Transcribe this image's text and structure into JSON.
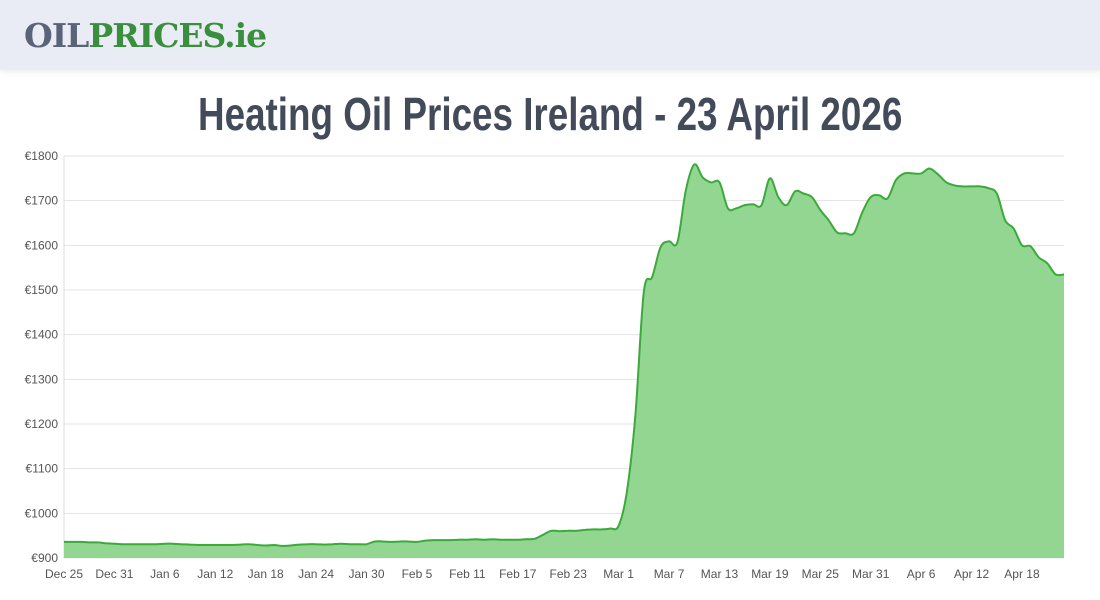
{
  "header": {
    "logo_part1": "OIL",
    "logo_part2": "PRICES.ie"
  },
  "title": "Heating Oil Prices Ireland - 23 April 2026",
  "colors": {
    "line": "#3aaa3a",
    "fill": "#92d691",
    "grid": "#e3e3e3",
    "title": "#434a5a"
  },
  "chart_data": {
    "type": "area",
    "title": "Heating Oil Prices Ireland - 23 April 2026",
    "xlabel": "",
    "ylabel": "",
    "ylim": [
      900,
      1800
    ],
    "grid": true,
    "y_ticks": [
      "€900",
      "€1000",
      "€1100",
      "€1200",
      "€1300",
      "€1400",
      "€1500",
      "€1600",
      "€1700",
      "€1800"
    ],
    "y_tick_values": [
      900,
      1000,
      1100,
      1200,
      1300,
      1400,
      1500,
      1600,
      1700,
      1800
    ],
    "x_ticks": [
      "Dec 25",
      "Dec 31",
      "Jan 6",
      "Jan 12",
      "Jan 18",
      "Jan 24",
      "Jan 30",
      "Feb 5",
      "Feb 11",
      "Feb 17",
      "Feb 23",
      "Mar 1",
      "Mar 7",
      "Mar 13",
      "Mar 19",
      "Mar 25",
      "Mar 31",
      "Apr 6",
      "Apr 12",
      "Apr 18"
    ],
    "x_range": [
      "Dec 25",
      "Apr 23"
    ],
    "values": [
      936,
      936,
      936,
      935,
      935,
      933,
      932,
      931,
      931,
      931,
      931,
      931,
      932,
      932,
      931,
      930,
      929,
      929,
      929,
      929,
      929,
      930,
      931,
      929,
      928,
      929,
      927,
      928,
      930,
      931,
      931,
      930,
      931,
      932,
      931,
      931,
      931,
      937,
      937,
      936,
      937,
      937,
      936,
      939,
      940,
      940,
      940,
      941,
      941,
      942,
      941,
      942,
      941,
      941,
      941,
      942,
      943,
      952,
      961,
      960,
      961,
      961,
      963,
      964,
      964,
      966,
      972,
      1050,
      1220,
      1495,
      1529,
      1596,
      1609,
      1607,
      1723,
      1781,
      1752,
      1741,
      1741,
      1683,
      1683,
      1690,
      1692,
      1690,
      1750,
      1708,
      1690,
      1721,
      1716,
      1708,
      1679,
      1656,
      1629,
      1627,
      1627,
      1674,
      1708,
      1712,
      1705,
      1746,
      1761,
      1761,
      1761,
      1772,
      1759,
      1741,
      1734,
      1732,
      1732,
      1732,
      1728,
      1716,
      1656,
      1638,
      1600,
      1598,
      1573,
      1560,
      1535,
      1535
    ]
  }
}
